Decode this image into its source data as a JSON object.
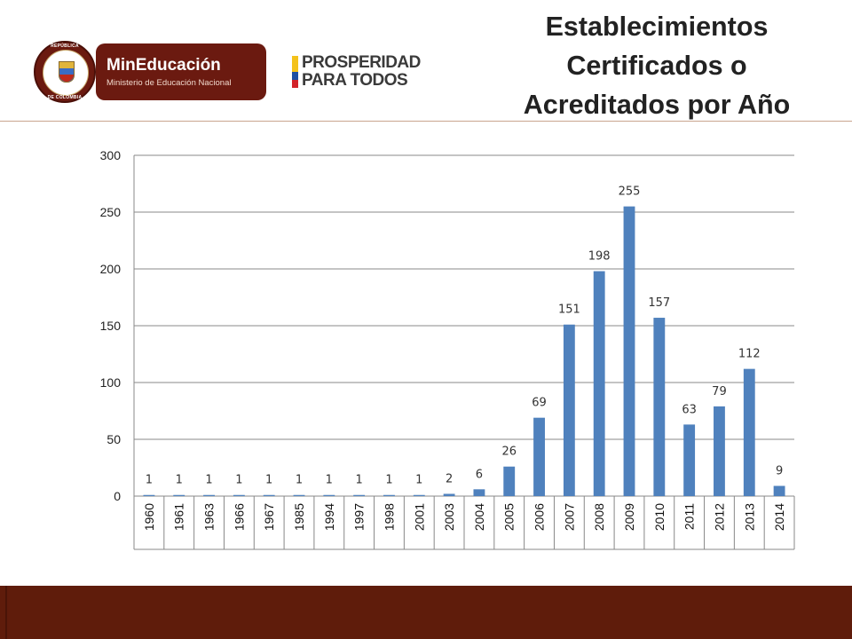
{
  "header": {
    "title_lines": [
      "Establecimientos",
      "Certificados o",
      "Acreditados por Año"
    ],
    "seal": {
      "top_text": "REPÚBLICA",
      "bottom_text": "DE COLOMBIA"
    },
    "logo": {
      "name": "MinEducación",
      "subtitle": "Ministerio de Educación Nacional"
    },
    "campaign": {
      "line1": "PROSPERIDAD",
      "line2": "PARA TODOS"
    }
  },
  "colors": {
    "bar": "#4f81bd",
    "brand": "#6b1a10",
    "footer": "#5f1c0b",
    "rule": "#c9a58e",
    "grid": "#888888"
  },
  "chart_data": {
    "type": "bar",
    "title": "Establecimientos Certificados o Acreditados por Año",
    "categories": [
      "1960",
      "1961",
      "1963",
      "1966",
      "1967",
      "1985",
      "1994",
      "1997",
      "1998",
      "2001",
      "2003",
      "2004",
      "2005",
      "2006",
      "2007",
      "2008",
      "2009",
      "2010",
      "2011",
      "2012",
      "2013",
      "2014"
    ],
    "values": [
      1,
      1,
      1,
      1,
      1,
      1,
      1,
      1,
      1,
      1,
      2,
      6,
      26,
      69,
      151,
      198,
      255,
      157,
      63,
      79,
      112,
      9
    ],
    "ylim": [
      0,
      300
    ],
    "yticks": [
      0,
      50,
      100,
      150,
      200,
      250,
      300
    ],
    "xlabel": "",
    "ylabel": "",
    "grid": true,
    "data_labels": true,
    "legend": "none"
  }
}
